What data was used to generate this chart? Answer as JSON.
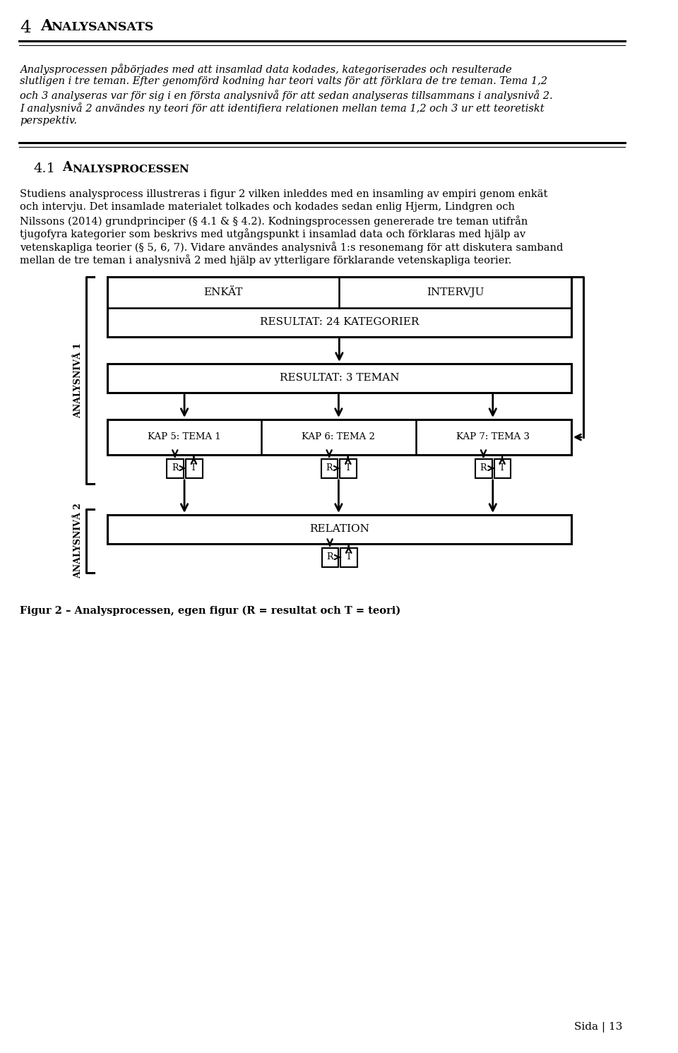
{
  "bg_color": "#ffffff",
  "title_num": "4",
  "title_text": "ANALYSANSATS",
  "para1_lines": [
    "Analysprocessen påbörjades med att insamlad data kodades, kategoriserades och resulterade",
    "slutligen i tre teman. Efter genomförd kodning har teori valts för att förklara de tre teman. Tema 1,2",
    "och 3 analyseras var för sig i en första analys nivå för att sedan analyseras tillsammans i analys nivå 2.",
    "I analys nivå 2 användes ny teori för att identifiera relationen mellan tema 1,2 och 3 ur ett teoretiskt",
    "perspektiv."
  ],
  "para1_lines_exact": [
    "Analysprocessen påbörjades med att insamlad data kodades, kategoriserades och resulterade",
    "slutligen i tre teman. Efter genomförd kodning har teori valts för att förklara de tre teman. Tema 1,2",
    "och 3 analyseras var för sig i en första analysnivå för att sedan analyseras tillsammans i analysnivå 2.",
    "I analysnivå 2 användes ny teori för att identifiera relationen mellan tema 1,2 och 3 ur ett teoretiskt",
    "perspektiv."
  ],
  "section_num": "4.1",
  "section_text": "ANALYSPROCESSEN",
  "para2_lines": [
    "Studiens analysprocess illustreras i figur 2 vilken inleddes med en insamling av empiri genomенкät",
    "och intervju. Det insamlade materialet tolkades och kodades sedan enlig Hjerm, Lindgren och",
    "Nilssons (2014) grundprinciper (§ 4.1 & § 4.2). Kodningsprocessen genererade tre teman utifrån",
    "tjugofyra kategorier som beskrivs med utgångspunkt i insamlad data och förklaras med hjälp av",
    "vetenskapliga teorier (§ 5, 6, 7). Vidare användes analysnivå 1:s resonemang för att diskutera samband",
    "mellan de tre teman i analysnivå 2 med hjälp av ytterligare förklarande vetenskapliga teorier."
  ],
  "para2_lines_exact": [
    "Studiens analysprocess illustreras i figur 2 vilken inleddes med en insamling av empiri genom enkät",
    "och intervju. Det insamlade materialet tolkades och kodades sedan enlig Hjerm, Lindgren och",
    "Nilssons (2014) grundprinciper (§ 4.1 & § 4.2). Kodningsprocessen genererade tre teman utifrån",
    "tjugofyra kategorier som beskrivs med utgångspunkt i insamlad data och förklaras med hjälp av",
    "vetenskapliga teorier (§ 5, 6, 7). Vidare användes analysnivå 1:s resonemang för att diskutera samband",
    "mellan de tre teman i analysnivå 2 med hjälp av ytterligare förklarande vetenskapliga teorier."
  ],
  "enkat_label": "ENKÄT",
  "intervju_label": "INTERVJU",
  "result24_label": "RESULTAT: 24 KATEGORIER",
  "result3_label": "RESULTAT: 3 TEMAN",
  "kap_labels": [
    "KAP 5: TEMA 1",
    "KAP 6: TEMA 2",
    "KAP 7: TEMA 3"
  ],
  "relation_label": "RELATION",
  "analysniva1_label": "ANALYSNIVÅ 1",
  "analysniva2_label": "ANALYSNIVÅ 2",
  "fig_caption": "Figur 2 – Analysprocessen, egen figur (R = resultat och T = teori)",
  "page_num": "Sida | 13"
}
